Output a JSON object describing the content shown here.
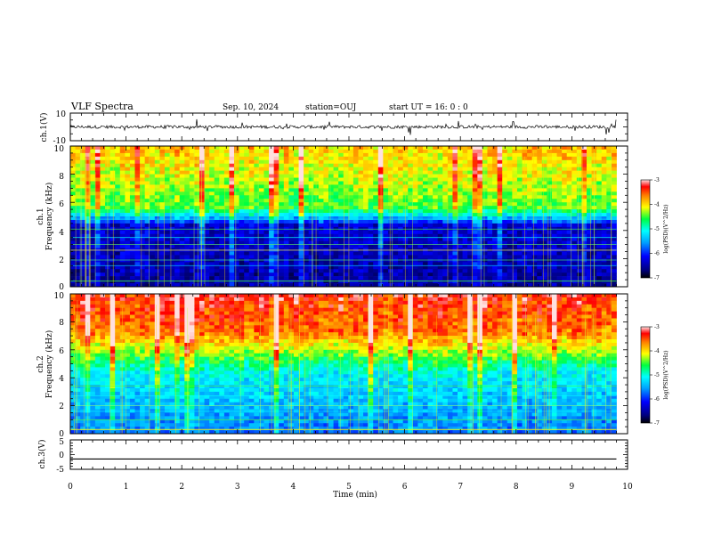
{
  "header": {
    "title": "VLF Spectra",
    "date": "Sep. 10, 2024",
    "station": "station=OUJ",
    "start": "start  UT =   16: 0  : 0"
  },
  "xaxis": {
    "label": "Time  (min)",
    "ticks": [
      "0",
      "1",
      "2",
      "3",
      "4",
      "5",
      "6",
      "7",
      "8",
      "9",
      "10"
    ],
    "range": [
      0,
      10
    ]
  },
  "panels": {
    "ch1_wave": {
      "ylabel": "ch.1(V)",
      "ticks": [
        "10",
        "-10"
      ],
      "ylim": [
        -10,
        10
      ]
    },
    "ch1_spec": {
      "ylabel1": "ch.1",
      "ylabel2": "Frequency  (kHz)",
      "ticks": [
        "0",
        "2",
        "4",
        "6",
        "8",
        "10"
      ],
      "ylim": [
        0,
        10
      ]
    },
    "ch2_spec": {
      "ylabel1": "ch.2",
      "ylabel2": "Frequency  (kHz)",
      "ticks": [
        "0",
        "2",
        "4",
        "6",
        "8",
        "10"
      ],
      "ylim": [
        0,
        10
      ]
    },
    "ch3_wave": {
      "ylabel": "ch.3(V)",
      "ticks": [
        "5",
        "0",
        "-5"
      ],
      "ylim": [
        -5,
        5
      ]
    }
  },
  "colorbar": {
    "label": "log(PSD)(V^2/Hz)",
    "ticks": [
      "-3",
      "-4",
      "-5",
      "-6",
      "-7"
    ],
    "range": [
      -7,
      -3
    ]
  },
  "chart_data": [
    {
      "type": "line",
      "title": "",
      "xlabel": "Time  (min)",
      "ylabel": "ch.1(V)",
      "xlim": [
        0,
        10
      ],
      "ylim": [
        -10,
        10
      ],
      "description_values": {
        "baseline_v": 0,
        "data_end_min": 9.8
      }
    },
    {
      "type": "heatmap",
      "ylabel": "ch.1 Frequency  (kHz)",
      "xlim": [
        0,
        10
      ],
      "ylim": [
        0,
        10
      ],
      "zlabel": "log(PSD)(V^2/Hz)",
      "zlim": [
        -7,
        -3
      ],
      "data_end_min": 9.8
    },
    {
      "type": "heatmap",
      "ylabel": "ch.2 Frequency  (kHz)",
      "xlim": [
        0,
        10
      ],
      "ylim": [
        0,
        10
      ],
      "zlabel": "log(PSD)(V^2/Hz)",
      "zlim": [
        -7,
        -3
      ],
      "data_end_min": 9.8
    },
    {
      "type": "line",
      "xlabel": "Time  (min)",
      "ylabel": "ch.3(V)",
      "xlim": [
        0,
        10
      ],
      "ylim": [
        -5,
        5
      ],
      "x": [
        0,
        9.8
      ],
      "y": [
        -1.5,
        -1.5
      ]
    }
  ]
}
